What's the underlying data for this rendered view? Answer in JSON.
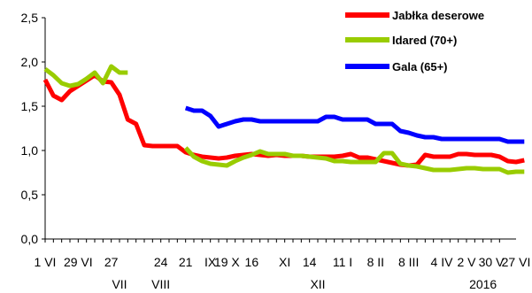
{
  "chart_data": {
    "type": "line",
    "title": "",
    "xlabel": "",
    "ylabel": "",
    "ylim": [
      0,
      2.5
    ],
    "y_ticks": [
      "0,0",
      "0,5",
      "1,0",
      "1,5",
      "2,0",
      "2,5"
    ],
    "x_tick_count": 56,
    "x_tick_labels": [
      {
        "idx": 0,
        "text": "1 VI"
      },
      {
        "idx": 4,
        "text": "29 VI"
      },
      {
        "idx": 8,
        "text": "27"
      },
      {
        "idx": 14,
        "text": "24"
      },
      {
        "idx": 17,
        "text": "21"
      },
      {
        "idx": 20,
        "text": "IX"
      },
      {
        "idx": 22,
        "text": "19 X"
      },
      {
        "idx": 25,
        "text": "16"
      },
      {
        "idx": 29,
        "text": "XI"
      },
      {
        "idx": 32,
        "text": "14"
      },
      {
        "idx": 36,
        "text": "11 I"
      },
      {
        "idx": 40,
        "text": "8 II"
      },
      {
        "idx": 44,
        "text": "8 III"
      },
      {
        "idx": 48,
        "text": "4 IV"
      },
      {
        "idx": 51,
        "text": "2 V"
      },
      {
        "idx": 54,
        "text": "30 V"
      },
      {
        "idx": 57,
        "text": "27 VI"
      }
    ],
    "x_group_labels": [
      {
        "idx": 9,
        "text": "VII"
      },
      {
        "idx": 14,
        "text": "VIII"
      },
      {
        "idx": 33,
        "text": "XII"
      },
      {
        "idx": 53,
        "text": "2016"
      }
    ],
    "legend_position": "top-right",
    "grid": false,
    "series": [
      {
        "name": "Jabłka deserowe",
        "color": "#ff0000",
        "start": 0,
        "values": [
          1.8,
          1.62,
          1.57,
          1.67,
          1.73,
          1.79,
          1.85,
          1.78,
          1.77,
          1.63,
          1.35,
          1.3,
          1.06,
          1.05,
          1.05,
          1.05,
          1.05,
          0.98,
          0.95,
          0.93,
          0.92,
          0.91,
          0.92,
          0.94,
          0.95,
          0.96,
          0.95,
          0.94,
          0.95,
          0.94,
          0.94,
          0.94,
          0.93,
          0.93,
          0.93,
          0.93,
          0.94,
          0.96,
          0.92,
          0.92,
          0.9,
          0.88,
          0.86,
          0.84,
          0.83,
          0.84,
          0.95,
          0.93,
          0.93,
          0.93,
          0.96,
          0.96,
          0.95,
          0.95,
          0.95,
          0.93,
          0.88,
          0.87,
          0.89
        ]
      },
      {
        "name": "Idared (70+)",
        "color": "#99cc00",
        "start": 0,
        "values": [
          1.92,
          1.85,
          1.76,
          1.73,
          1.75,
          1.81,
          1.88,
          1.76,
          1.95,
          1.88,
          1.88,
          null,
          null,
          null,
          null,
          null,
          null,
          1.03,
          0.93,
          0.88,
          0.85,
          0.84,
          0.83,
          0.88,
          0.92,
          0.95,
          0.99,
          0.96,
          0.96,
          0.96,
          0.94,
          0.94,
          0.93,
          0.92,
          0.91,
          0.88,
          0.88,
          0.87,
          0.87,
          0.87,
          0.87,
          0.97,
          0.97,
          0.85,
          0.83,
          0.82,
          0.8,
          0.78,
          0.78,
          0.78,
          0.79,
          0.8,
          0.8,
          0.79,
          0.79,
          0.79,
          0.75,
          0.76,
          0.76
        ]
      },
      {
        "name": "Gala (65+)",
        "color": "#0000ff",
        "start": 17,
        "values": [
          1.48,
          1.45,
          1.45,
          1.39,
          1.27,
          1.3,
          1.33,
          1.35,
          1.35,
          1.33,
          1.33,
          1.33,
          1.33,
          1.33,
          1.33,
          1.33,
          1.33,
          1.38,
          1.38,
          1.35,
          1.35,
          1.35,
          1.35,
          1.3,
          1.3,
          1.3,
          1.22,
          1.2,
          1.17,
          1.15,
          1.15,
          1.13,
          1.13,
          1.13,
          1.13,
          1.13,
          1.13,
          1.13,
          1.13,
          1.1,
          1.1,
          1.1
        ]
      }
    ]
  }
}
